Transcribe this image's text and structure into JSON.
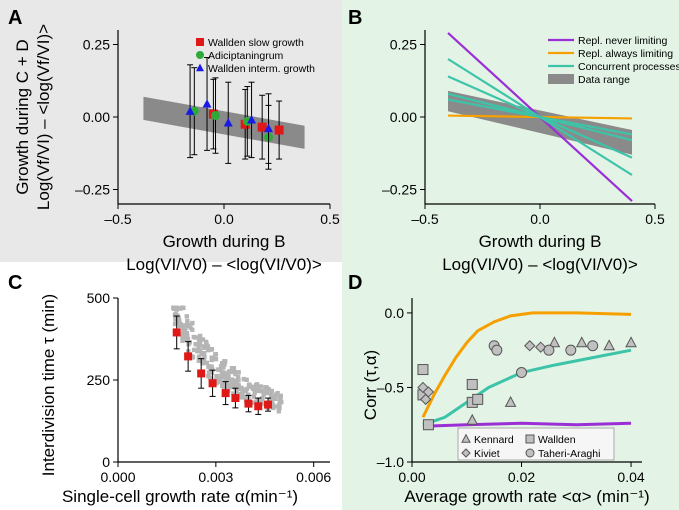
{
  "panels": {
    "A": {
      "letter": "A"
    },
    "B": {
      "letter": "B"
    },
    "C": {
      "letter": "C"
    },
    "D": {
      "letter": "D"
    }
  },
  "colors": {
    "panel_bg_A": "#e8e8e8",
    "panel_bg_B": "#e3f4e6",
    "panel_bg_C": "#ffffff",
    "panel_bg_D": "#e3f4e6",
    "red": "#e01818",
    "green": "#2eaa3a",
    "blue": "#1a1ae6",
    "purple": "#9b2fd6",
    "orange": "#f5a000",
    "teal": "#3dc4a8",
    "gray_band": "#8a8a8a",
    "light_gray": "#c0c0c0",
    "marker_gray": "#b5b5b5"
  },
  "chart_data": [
    {
      "panel": "A",
      "type": "scatter",
      "ylabel_lines": [
        "Growth during C + D",
        "Log(Vf/VI) – <log(Vf/VI)>"
      ],
      "xlabel_lines": [
        "Growth during B",
        "Log(VI/V0) – <log(VI/V0)>"
      ],
      "xlim": [
        -0.5,
        0.5
      ],
      "ylim": [
        -0.3,
        0.3
      ],
      "xticks": [
        "–0.5",
        "0.0",
        "0.5"
      ],
      "yticks": [
        "–0.25",
        "0.00",
        "0.25"
      ],
      "band": {
        "x": [
          -0.38,
          0.38
        ],
        "upper": [
          0.07,
          -0.03
        ],
        "lower": [
          -0.01,
          -0.11
        ]
      },
      "series": [
        {
          "name": "Wallden slow growth",
          "marker": "square",
          "color": "red",
          "x": [
            -0.05,
            0.1,
            0.18,
            0.26
          ],
          "y": [
            0.01,
            -0.025,
            -0.035,
            -0.045
          ],
          "err": [
            0.12,
            0.12,
            0.11,
            0.1
          ]
        },
        {
          "name": "Adiciptaningrum",
          "marker": "circle",
          "color": "green",
          "x": [
            -0.14,
            -0.04,
            0.11,
            0.21
          ],
          "y": [
            0.02,
            0.005,
            -0.015,
            -0.07
          ],
          "err": [
            0.15,
            0.13,
            0.12,
            0.11
          ]
        },
        {
          "name": "Wallden interm. growth",
          "marker": "triangle",
          "color": "blue",
          "x": [
            -0.16,
            -0.08,
            0.02,
            0.13,
            0.21
          ],
          "y": [
            0.02,
            0.045,
            -0.02,
            -0.01,
            -0.04
          ],
          "err": [
            0.16,
            0.16,
            0.14,
            0.13,
            0.12
          ]
        }
      ]
    },
    {
      "panel": "B",
      "type": "line",
      "xlabel_lines": [
        "Growth during B",
        "Log(VI/V0) – <log(VI/V0)>"
      ],
      "xlim": [
        -0.5,
        0.5
      ],
      "ylim": [
        -0.3,
        0.3
      ],
      "xticks": [
        "–0.5",
        "0.0",
        "0.5"
      ],
      "yticks": [
        "–0.25",
        "0.00",
        "0.25"
      ],
      "band": {
        "x": [
          -0.4,
          0.4
        ],
        "upper": [
          0.09,
          -0.045
        ],
        "lower": [
          0.02,
          -0.13
        ]
      },
      "series": [
        {
          "name": "Repl. never limiting",
          "color": "purple",
          "x": [
            -0.4,
            0.4
          ],
          "y": [
            0.29,
            -0.29
          ]
        },
        {
          "name": "Repl. always limiting",
          "color": "orange",
          "x": [
            -0.4,
            0.4
          ],
          "y": [
            0.005,
            -0.005
          ]
        },
        {
          "name": "Concurrent processes",
          "color": "teal",
          "x": [
            -0.4,
            0.4
          ],
          "y": [
            0.2,
            -0.2
          ]
        },
        {
          "name": "",
          "color": "teal",
          "x": [
            -0.4,
            0.4
          ],
          "y": [
            0.14,
            -0.14
          ]
        },
        {
          "name": "",
          "color": "teal",
          "x": [
            -0.4,
            0.4
          ],
          "y": [
            0.08,
            -0.08
          ]
        },
        {
          "name": "",
          "color": "teal",
          "x": [
            -0.4,
            0.4
          ],
          "y": [
            0.06,
            -0.06
          ]
        }
      ],
      "band_legend": "Data range"
    },
    {
      "panel": "C",
      "type": "scatter",
      "ylabel": "Interdivision time τ (min)",
      "xlabel": "Single-cell growth rate α(min⁻¹)",
      "xlim": [
        0.0,
        0.0065
      ],
      "ylim": [
        0,
        500
      ],
      "xticks": [
        "0.000",
        "0.003",
        "0.006"
      ],
      "yticks": [
        "0",
        "250",
        "500"
      ],
      "binned_means": {
        "x": [
          0.0018,
          0.00215,
          0.00255,
          0.0029,
          0.0033,
          0.0036,
          0.004,
          0.0043,
          0.0046
        ],
        "y": [
          395,
          322,
          270,
          240,
          210,
          195,
          178,
          170,
          175
        ],
        "err": [
          50,
          45,
          45,
          40,
          35,
          30,
          25,
          25,
          20
        ]
      }
    },
    {
      "panel": "D",
      "type": "line",
      "ylabel": "Corr (τ,α)",
      "xlabel": "Average growth rate <α> (min⁻¹)",
      "xlim": [
        0.0,
        0.042
      ],
      "ylim": [
        -1.0,
        0.1
      ],
      "xticks": [
        "0.00",
        "0.02",
        "0.04"
      ],
      "yticks": [
        "–1.0",
        "–0.5",
        "0.0"
      ],
      "series": [
        {
          "name": "Repl. always limiting",
          "color": "orange",
          "x": [
            0.002,
            0.004,
            0.006,
            0.008,
            0.01,
            0.012,
            0.015,
            0.018,
            0.022,
            0.03,
            0.04
          ],
          "y": [
            -0.7,
            -0.55,
            -0.42,
            -0.3,
            -0.2,
            -0.12,
            -0.06,
            -0.02,
            0.0,
            0.0,
            -0.01
          ]
        },
        {
          "name": "Concurrent processes",
          "color": "teal",
          "x": [
            0.002,
            0.006,
            0.01,
            0.014,
            0.02,
            0.026,
            0.033,
            0.04
          ],
          "y": [
            -0.75,
            -0.7,
            -0.6,
            -0.5,
            -0.4,
            -0.35,
            -0.3,
            -0.25
          ]
        },
        {
          "name": "Repl. never limiting",
          "color": "purple",
          "x": [
            0.002,
            0.01,
            0.02,
            0.03,
            0.04
          ],
          "y": [
            -0.76,
            -0.75,
            -0.74,
            -0.75,
            -0.74
          ]
        }
      ],
      "points": [
        {
          "dataset": "Kennard",
          "marker": "triangle",
          "x": [
            0.011,
            0.018,
            0.026,
            0.031,
            0.036,
            0.04
          ],
          "y": [
            -0.72,
            -0.6,
            -0.2,
            -0.2,
            -0.22,
            -0.2
          ]
        },
        {
          "dataset": "Wallden",
          "marker": "square",
          "x": [
            0.002,
            0.002,
            0.003,
            0.011,
            0.011,
            0.012
          ],
          "y": [
            -0.38,
            -0.55,
            -0.75,
            -0.48,
            -0.6,
            -0.58
          ]
        },
        {
          "dataset": "Kiviet",
          "marker": "diamond",
          "x": [
            0.002,
            0.003,
            0.0025,
            0.0215,
            0.0235
          ],
          "y": [
            -0.5,
            -0.53,
            -0.58,
            -0.22,
            -0.23
          ]
        },
        {
          "dataset": "Taheri-Araghi",
          "marker": "circle",
          "x": [
            0.015,
            0.0155,
            0.02,
            0.025,
            0.029,
            0.033
          ],
          "y": [
            -0.22,
            -0.25,
            -0.4,
            -0.25,
            -0.25,
            -0.22
          ]
        }
      ],
      "legend": [
        "Kennard",
        "Wallden",
        "Kiviet",
        "Taheri-Araghi"
      ]
    }
  ]
}
